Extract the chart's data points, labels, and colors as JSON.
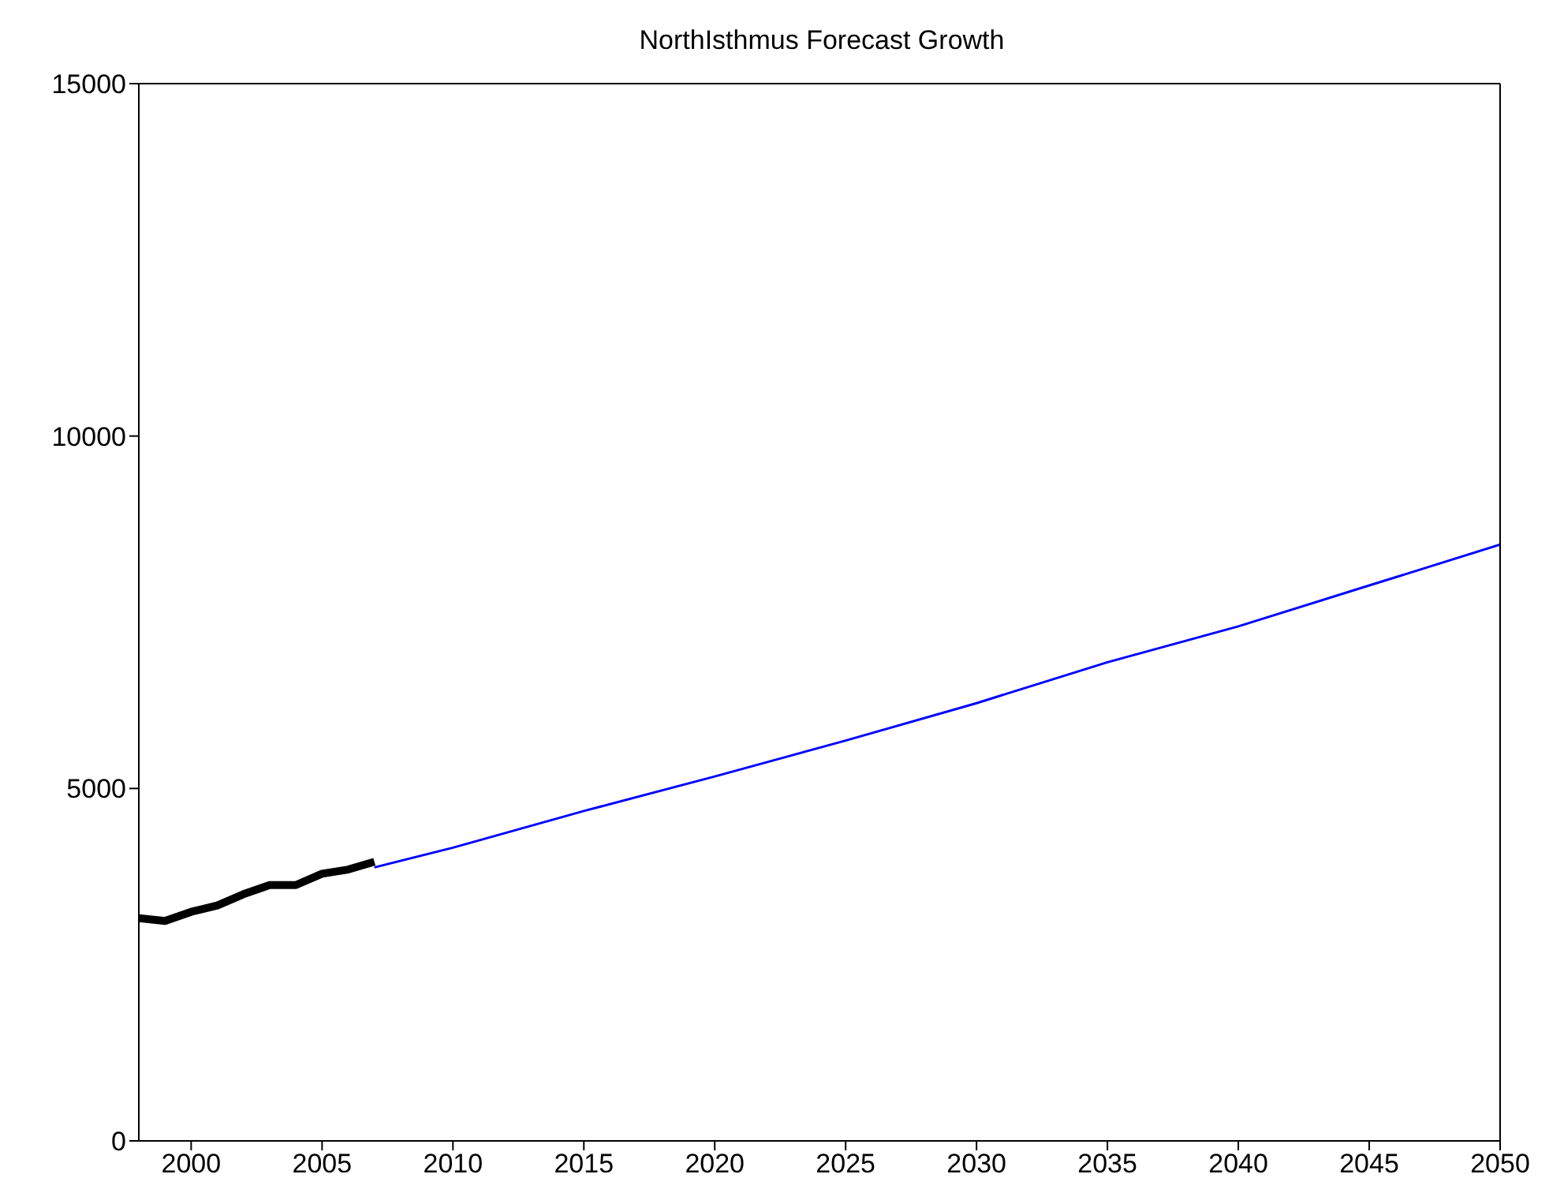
{
  "chart_data": {
    "type": "line",
    "title": "NorthIsthmus Forecast Growth",
    "xlim": [
      1998,
      2050
    ],
    "xticks": [
      2000,
      2005,
      2010,
      2015,
      2020,
      2025,
      2030,
      2035,
      2040,
      2045,
      2050
    ],
    "ylim": [
      0,
      15000
    ],
    "yticks": [
      0,
      5000,
      10000,
      15000
    ],
    "marker": "none",
    "line_style": "solid",
    "series": [
      {
        "color": "#000000",
        "x": [
          1998,
          1999,
          2000,
          2001,
          2002,
          2003,
          2004,
          2005,
          2006,
          2007
        ],
        "values": [
          3160,
          3120,
          3250,
          3340,
          3500,
          3630,
          3630,
          3790,
          3850,
          3960
        ]
      },
      {
        "color": "#0000ff",
        "x": [
          2007,
          2010,
          2015,
          2020,
          2025,
          2030,
          2035,
          2040,
          2045,
          2050
        ],
        "values": [
          3880,
          4160,
          4680,
          5170,
          5680,
          6210,
          6790,
          7300,
          7880,
          8460
        ]
      }
    ]
  }
}
